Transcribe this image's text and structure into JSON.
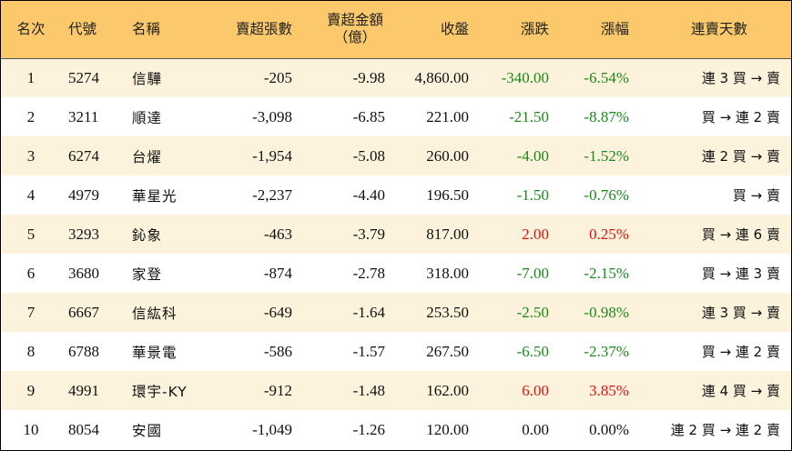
{
  "headers": {
    "rank": "名次",
    "code": "代號",
    "name": "名稱",
    "net_sell_lots": "賣超張數",
    "net_sell_amount_line1": "賣超金額",
    "net_sell_amount_line2": "（億）",
    "close": "收盤",
    "change": "漲跌",
    "change_pct": "漲幅",
    "streak": "連賣天數"
  },
  "colors": {
    "header_bg": "#fbc96b",
    "odd_row_bg": "#fdf3dc",
    "up": "#e01010",
    "down": "#1a8a1a"
  },
  "rows": [
    {
      "rank": "1",
      "code": "5274",
      "name": "信驊",
      "lots": "-205",
      "amount": "-9.98",
      "close": "4,860.00",
      "change": "-340.00",
      "pct": "-6.54%",
      "dir": "neg",
      "streak": "連 3 買 → 賣"
    },
    {
      "rank": "2",
      "code": "3211",
      "name": "順達",
      "lots": "-3,098",
      "amount": "-6.85",
      "close": "221.00",
      "change": "-21.50",
      "pct": "-8.87%",
      "dir": "neg",
      "streak": "買 → 連 2 賣"
    },
    {
      "rank": "3",
      "code": "6274",
      "name": "台燿",
      "lots": "-1,954",
      "amount": "-5.08",
      "close": "260.00",
      "change": "-4.00",
      "pct": "-1.52%",
      "dir": "neg",
      "streak": "連 2 買 → 賣"
    },
    {
      "rank": "4",
      "code": "4979",
      "name": "華星光",
      "lots": "-2,237",
      "amount": "-4.40",
      "close": "196.50",
      "change": "-1.50",
      "pct": "-0.76%",
      "dir": "neg",
      "streak": "買 → 賣"
    },
    {
      "rank": "5",
      "code": "3293",
      "name": "鈊象",
      "lots": "-463",
      "amount": "-3.79",
      "close": "817.00",
      "change": "2.00",
      "pct": "0.25%",
      "dir": "pos",
      "streak": "買 → 連 6 賣"
    },
    {
      "rank": "6",
      "code": "3680",
      "name": "家登",
      "lots": "-874",
      "amount": "-2.78",
      "close": "318.00",
      "change": "-7.00",
      "pct": "-2.15%",
      "dir": "neg",
      "streak": "買 → 連 3 賣"
    },
    {
      "rank": "7",
      "code": "6667",
      "name": "信紘科",
      "lots": "-649",
      "amount": "-1.64",
      "close": "253.50",
      "change": "-2.50",
      "pct": "-0.98%",
      "dir": "neg",
      "streak": "連 3 買 → 賣"
    },
    {
      "rank": "8",
      "code": "6788",
      "name": "華景電",
      "lots": "-586",
      "amount": "-1.57",
      "close": "267.50",
      "change": "-6.50",
      "pct": "-2.37%",
      "dir": "neg",
      "streak": "買 → 連 2 賣"
    },
    {
      "rank": "9",
      "code": "4991",
      "name": "環宇-KY",
      "lots": "-912",
      "amount": "-1.48",
      "close": "162.00",
      "change": "6.00",
      "pct": "3.85%",
      "dir": "pos",
      "streak": "連 4 買 → 賣"
    },
    {
      "rank": "10",
      "code": "8054",
      "name": "安國",
      "lots": "-1,049",
      "amount": "-1.26",
      "close": "120.00",
      "change": "0.00",
      "pct": "0.00%",
      "dir": "zero",
      "streak": "連 2 買 → 連 2 賣"
    }
  ]
}
